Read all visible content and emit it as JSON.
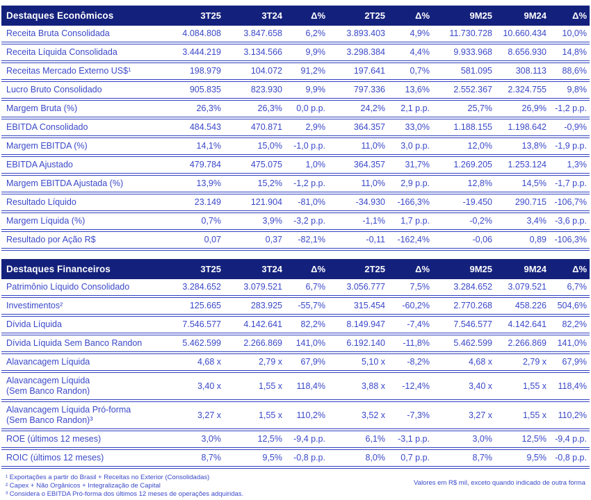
{
  "colors": {
    "header_bg": "#14217C",
    "body_text": "#3A48C8",
    "row_separator": "#2F3FBE",
    "header_text": "#FFFFFF"
  },
  "columns": [
    "3T25",
    "3T24",
    "Δ%",
    "2T25",
    "Δ%",
    "9M25",
    "9M24",
    "Δ%"
  ],
  "tables": [
    {
      "title": "Destaques Econômicos",
      "rows": [
        {
          "label": "Receita Bruta Consolidada",
          "values": [
            "4.084.808",
            "3.847.658",
            "6,2%",
            "3.893.403",
            "4,9%",
            "11.730.728",
            "10.660.434",
            "10,0%"
          ]
        },
        {
          "label": "Receita Líquida Consolidada",
          "values": [
            "3.444.219",
            "3.134.566",
            "9,9%",
            "3.298.384",
            "4,4%",
            "9.933.968",
            "8.656.930",
            "14,8%"
          ]
        },
        {
          "label": "Receitas Mercado Externo US$¹",
          "values": [
            "198.979",
            "104.072",
            "91,2%",
            "197.641",
            "0,7%",
            "581.095",
            "308.113",
            "88,6%"
          ]
        },
        {
          "label": "Lucro Bruto Consolidado",
          "values": [
            "905.835",
            "823.930",
            "9,9%",
            "797.336",
            "13,6%",
            "2.552.367",
            "2.324.755",
            "9,8%"
          ]
        },
        {
          "label": "Margem Bruta (%)",
          "values": [
            "26,3%",
            "26,3%",
            "0,0 p.p.",
            "24,2%",
            "2,1 p.p.",
            "25,7%",
            "26,9%",
            "-1,2 p.p."
          ]
        },
        {
          "label": "EBITDA Consolidado",
          "values": [
            "484.543",
            "470.871",
            "2,9%",
            "364.357",
            "33,0%",
            "1.188.155",
            "1.198.642",
            "-0,9%"
          ]
        },
        {
          "label": "Margem EBITDA (%)",
          "values": [
            "14,1%",
            "15,0%",
            "-1,0 p.p.",
            "11,0%",
            "3,0 p.p.",
            "12,0%",
            "13,8%",
            "-1,9 p.p."
          ]
        },
        {
          "label": "EBITDA Ajustado",
          "values": [
            "479.784",
            "475.075",
            "1,0%",
            "364.357",
            "31,7%",
            "1.269.205",
            "1.253.124",
            "1,3%"
          ]
        },
        {
          "label": "Margem EBITDA Ajustada (%)",
          "values": [
            "13,9%",
            "15,2%",
            "-1,2 p.p.",
            "11,0%",
            "2,9 p.p.",
            "12,8%",
            "14,5%",
            "-1,7 p.p."
          ]
        },
        {
          "label": "Resultado Líquido",
          "values": [
            "23.149",
            "121.904",
            "-81,0%",
            "-34.930",
            "-166,3%",
            "-19.450",
            "290.715",
            "-106,7%"
          ]
        },
        {
          "label": "Margem Líquida (%)",
          "values": [
            "0,7%",
            "3,9%",
            "-3,2 p.p.",
            "-1,1%",
            "1,7 p.p.",
            "-0,2%",
            "3,4%",
            "-3,6 p.p."
          ]
        },
        {
          "label": "Resultado por Ação R$",
          "values": [
            "0,07",
            "0,37",
            "-82,1%",
            "-0,11",
            "-162,4%",
            "-0,06",
            "0,89",
            "-106,3%"
          ]
        }
      ]
    },
    {
      "title": "Destaques Financeiros",
      "rows": [
        {
          "label": "Patrimônio Líquido Consolidado",
          "values": [
            "3.284.652",
            "3.079.521",
            "6,7%",
            "3.056.777",
            "7,5%",
            "3.284.652",
            "3.079.521",
            "6,7%"
          ]
        },
        {
          "label": "Investimentos²",
          "values": [
            "125.665",
            "283.925",
            "-55,7%",
            "315.454",
            "-60,2%",
            "2.770.268",
            "458.226",
            "504,6%"
          ]
        },
        {
          "label": "Dívida Líquida",
          "values": [
            "7.546.577",
            "4.142.641",
            "82,2%",
            "8.149.947",
            "-7,4%",
            "7.546.577",
            "4.142.641",
            "82,2%"
          ]
        },
        {
          "label": "Dívida Líquida Sem Banco Randon",
          "values": [
            "5.462.599",
            "2.266.869",
            "141,0%",
            "6.192.140",
            "-11,8%",
            "5.462.599",
            "2.266.869",
            "141,0%"
          ]
        },
        {
          "label": "Alavancagem Líquida",
          "values": [
            "4,68 x",
            "2,79 x",
            "67,9%",
            "5,10 x",
            "-8,2%",
            "4,68 x",
            "2,79 x",
            "67,9%"
          ]
        },
        {
          "label": "Alavancagem Líquida\n(Sem Banco Randon)",
          "values": [
            "3,40 x",
            "1,55 x",
            "118,4%",
            "3,88 x",
            "-12,4%",
            "3,40 x",
            "1,55 x",
            "118,4%"
          ]
        },
        {
          "label": "Alavancagem Líquida Pró-forma\n(Sem Banco Randon)³",
          "values": [
            "3,27 x",
            "1,55 x",
            "110,2%",
            "3,52 x",
            "-7,3%",
            "3,27 x",
            "1,55 x",
            "110,2%"
          ]
        },
        {
          "label": "ROE (últimos 12 meses)",
          "values": [
            "3,0%",
            "12,5%",
            "-9,4 p.p.",
            "6,1%",
            "-3,1 p.p.",
            "3,0%",
            "12,5%",
            "-9,4 p.p."
          ]
        },
        {
          "label": "ROIC (últimos 12 meses)",
          "values": [
            "8,7%",
            "9,5%",
            "-0,8 p.p.",
            "8,0%",
            "0,7 p.p.",
            "8,7%",
            "9,5%",
            "-0,8 p.p."
          ]
        }
      ]
    }
  ],
  "footnotes": [
    "¹ Exportações a partir do Brasil + Receitas no Exterior (Consolidadas)",
    "² Capex + Não Orgânicos + Integralização de Capital",
    "³ Considera o EBITDA Pró-forma dos últimos 12 meses de operações adquiridas."
  ],
  "note_right": "Valores em R$ mil, exceto quando indicado de outra forma"
}
